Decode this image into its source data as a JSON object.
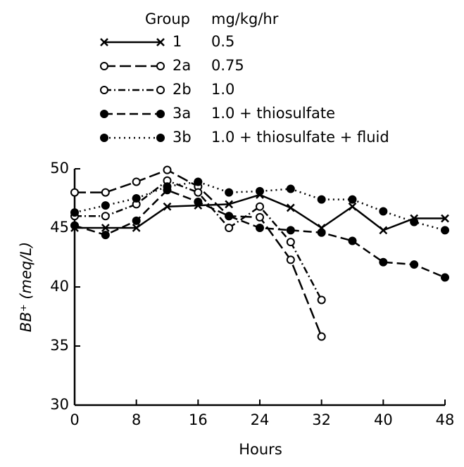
{
  "chart_data": {
    "type": "line",
    "legend_header": [
      "Group",
      "mg/kg/hr"
    ],
    "x_label": "Hours",
    "y_label": "BB⁺ (meq/L)",
    "x": [
      0,
      4,
      8,
      12,
      16,
      20,
      24,
      28,
      32,
      36,
      40,
      44,
      48
    ],
    "series": [
      {
        "name": "1",
        "dose": "0.5",
        "color": "#000000",
        "line_style": "solid",
        "marker": "x",
        "values": [
          45,
          45,
          45,
          46.8,
          46.9,
          47,
          47.8,
          46.7,
          45,
          46.8,
          44.8,
          45.8,
          45.8
        ]
      },
      {
        "name": "2a",
        "dose": "0.75",
        "color": "#000000",
        "line_style": "long-dash",
        "marker": "open",
        "values": [
          48,
          48,
          48.9,
          49.9,
          48.5,
          46,
          45.9,
          42.3,
          35.8,
          null,
          null,
          null,
          null
        ]
      },
      {
        "name": "2b",
        "dose": "1.0",
        "color": "#000000",
        "line_style": "dash-dot",
        "marker": "open",
        "values": [
          46,
          46,
          47,
          49,
          48,
          45,
          46.8,
          43.8,
          38.9,
          null,
          null,
          null,
          null
        ]
      },
      {
        "name": "3a",
        "dose": "1.0 + thiosulfate",
        "color": "#000000",
        "line_style": "dashed",
        "marker": "filled",
        "values": [
          45.2,
          44.4,
          45.6,
          48.2,
          47.2,
          46,
          45,
          44.8,
          44.6,
          43.9,
          42.1,
          41.9,
          40.8
        ]
      },
      {
        "name": "3b",
        "dose": "1.0 + thiosulfate + fluid",
        "color": "#000000",
        "line_style": "dotted",
        "marker": "filled",
        "values": [
          46.3,
          46.9,
          47.5,
          48.5,
          48.9,
          48,
          48.1,
          48.3,
          47.4,
          47.4,
          46.4,
          45.5,
          44.8
        ]
      }
    ],
    "xlim": [
      0,
      48
    ],
    "xticks": [
      0,
      8,
      16,
      24,
      32,
      40,
      48
    ],
    "ylim": [
      30,
      50
    ],
    "yticks": [
      30,
      35,
      40,
      45,
      50
    ],
    "grid": false
  }
}
